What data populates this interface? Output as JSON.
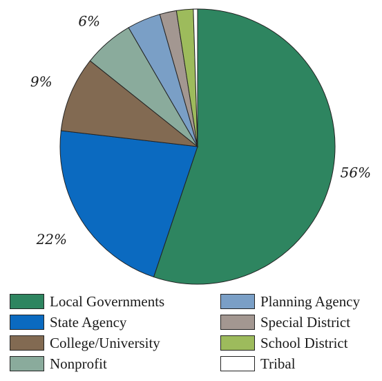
{
  "chart_data": {
    "type": "pie",
    "title": "",
    "slices": [
      {
        "label": "Local Governments",
        "value": 56,
        "color": "#2e8560",
        "data_label": "56%"
      },
      {
        "label": "State Agency",
        "value": 22,
        "color": "#0b6ac0",
        "data_label": "22%"
      },
      {
        "label": "College/University",
        "value": 9,
        "color": "#826a52",
        "data_label": "9%"
      },
      {
        "label": "Nonprofit",
        "value": 6,
        "color": "#8aab9c",
        "data_label": "6%"
      },
      {
        "label": "Planning Agency",
        "value": 4,
        "color": "#7a9fc6",
        "data_label": ""
      },
      {
        "label": "Special District",
        "value": 2,
        "color": "#a39791",
        "data_label": ""
      },
      {
        "label": "School District",
        "value": 2,
        "color": "#9dbb5c",
        "data_label": ""
      },
      {
        "label": "Tribal",
        "value": 0.5,
        "color": "#ffffff",
        "data_label": ""
      }
    ],
    "legend_position": "bottom",
    "start_angle": "top",
    "direction": "clockwise"
  },
  "legend": {
    "items": [
      {
        "label": "Local Governments",
        "color": "#2e8560"
      },
      {
        "label": "State Agency",
        "color": "#0b6ac0"
      },
      {
        "label": "College/University",
        "color": "#826a52"
      },
      {
        "label": "Nonprofit",
        "color": "#8aab9c"
      },
      {
        "label": "Planning Agency",
        "color": "#7a9fc6"
      },
      {
        "label": "Special District",
        "color": "#a39791"
      },
      {
        "label": "School District",
        "color": "#9dbb5c"
      },
      {
        "label": "Tribal",
        "color": "#ffffff"
      }
    ]
  }
}
